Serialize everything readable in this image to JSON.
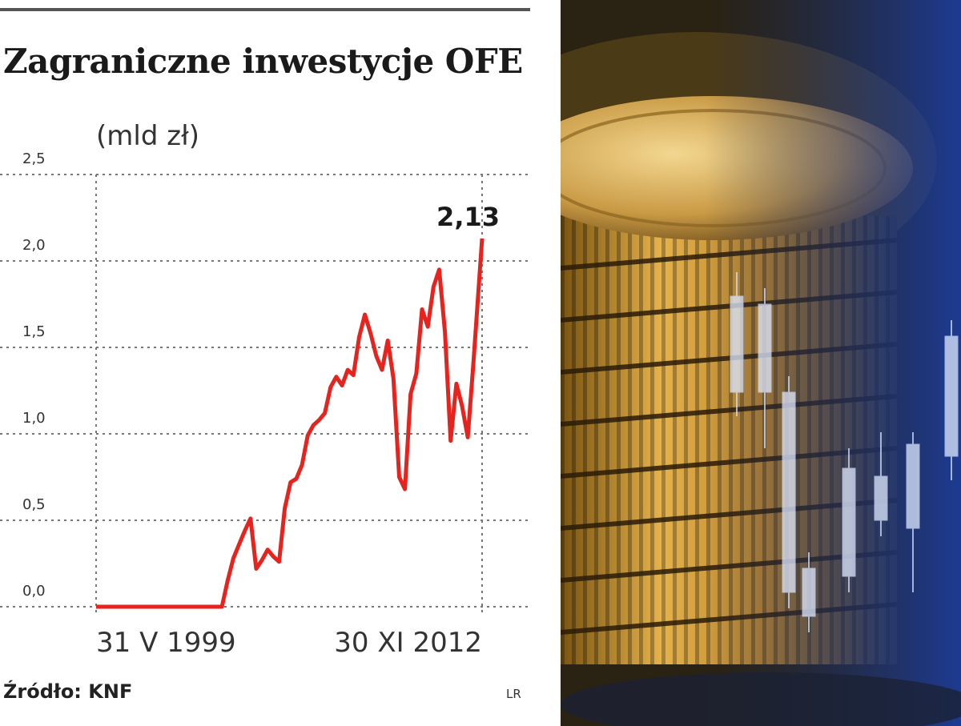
{
  "header": {
    "title": "Zagraniczne inwestycje OFE",
    "unit": "(mld zł)"
  },
  "footer": {
    "source": "Źródło: KNF",
    "credit": "LR"
  },
  "chart_data": {
    "type": "line",
    "title": "Zagraniczne inwestycje OFE",
    "ylabel": "(mld zł)",
    "xlabel": "",
    "ylim": [
      0,
      2.5
    ],
    "yticks": [
      "0,0",
      "0,5",
      "1,0",
      "1,5",
      "2,0",
      "2,5"
    ],
    "ytick_values": [
      0,
      0.5,
      1.0,
      1.5,
      2.0,
      2.5
    ],
    "xticks": [
      "31 V 1999",
      "30 XI 2012"
    ],
    "grid": true,
    "color": "#e8231e",
    "peak_label": "2,13",
    "x": [
      0,
      0.2,
      0.4,
      0.6,
      0.8,
      1.0,
      1.2,
      1.4,
      1.6,
      1.8,
      2.0,
      2.2,
      2.4,
      2.6,
      2.8,
      3.0,
      3.2,
      3.4,
      3.6,
      3.8,
      4.0,
      4.2,
      4.4,
      4.6,
      4.8,
      5.0,
      5.2,
      5.4,
      5.6,
      5.8,
      6.0,
      6.2,
      6.4,
      6.6,
      6.8,
      7.0,
      7.2,
      7.4,
      7.6,
      7.8,
      8.0,
      8.2,
      8.4,
      8.6,
      8.8,
      9.0,
      9.2,
      9.4,
      9.6,
      9.8,
      10.0,
      10.2,
      10.4,
      10.6,
      10.8,
      11.0,
      11.2,
      11.4,
      11.6,
      11.8,
      12.0,
      12.2,
      12.4,
      12.6,
      12.8,
      13.0,
      13.2,
      13.5
    ],
    "values": [
      0,
      0,
      0,
      0,
      0,
      0,
      0,
      0,
      0,
      0,
      0,
      0,
      0,
      0,
      0,
      0,
      0,
      0,
      0,
      0,
      0,
      0,
      0,
      0.15,
      0.28,
      0.36,
      0.44,
      0.51,
      0.22,
      0.27,
      0.33,
      0.29,
      0.26,
      0.57,
      0.72,
      0.74,
      0.82,
      0.99,
      1.05,
      1.08,
      1.12,
      1.27,
      1.33,
      1.28,
      1.37,
      1.34,
      1.56,
      1.69,
      1.58,
      1.45,
      1.37,
      1.54,
      1.32,
      0.75,
      0.68,
      1.23,
      1.35,
      1.72,
      1.62,
      1.85,
      1.95,
      1.59,
      0.96,
      1.29,
      1.16,
      0.98,
      1.42,
      2.13
    ]
  },
  "photo": {
    "description_icon": "coins-and-candlestick-photo"
  }
}
